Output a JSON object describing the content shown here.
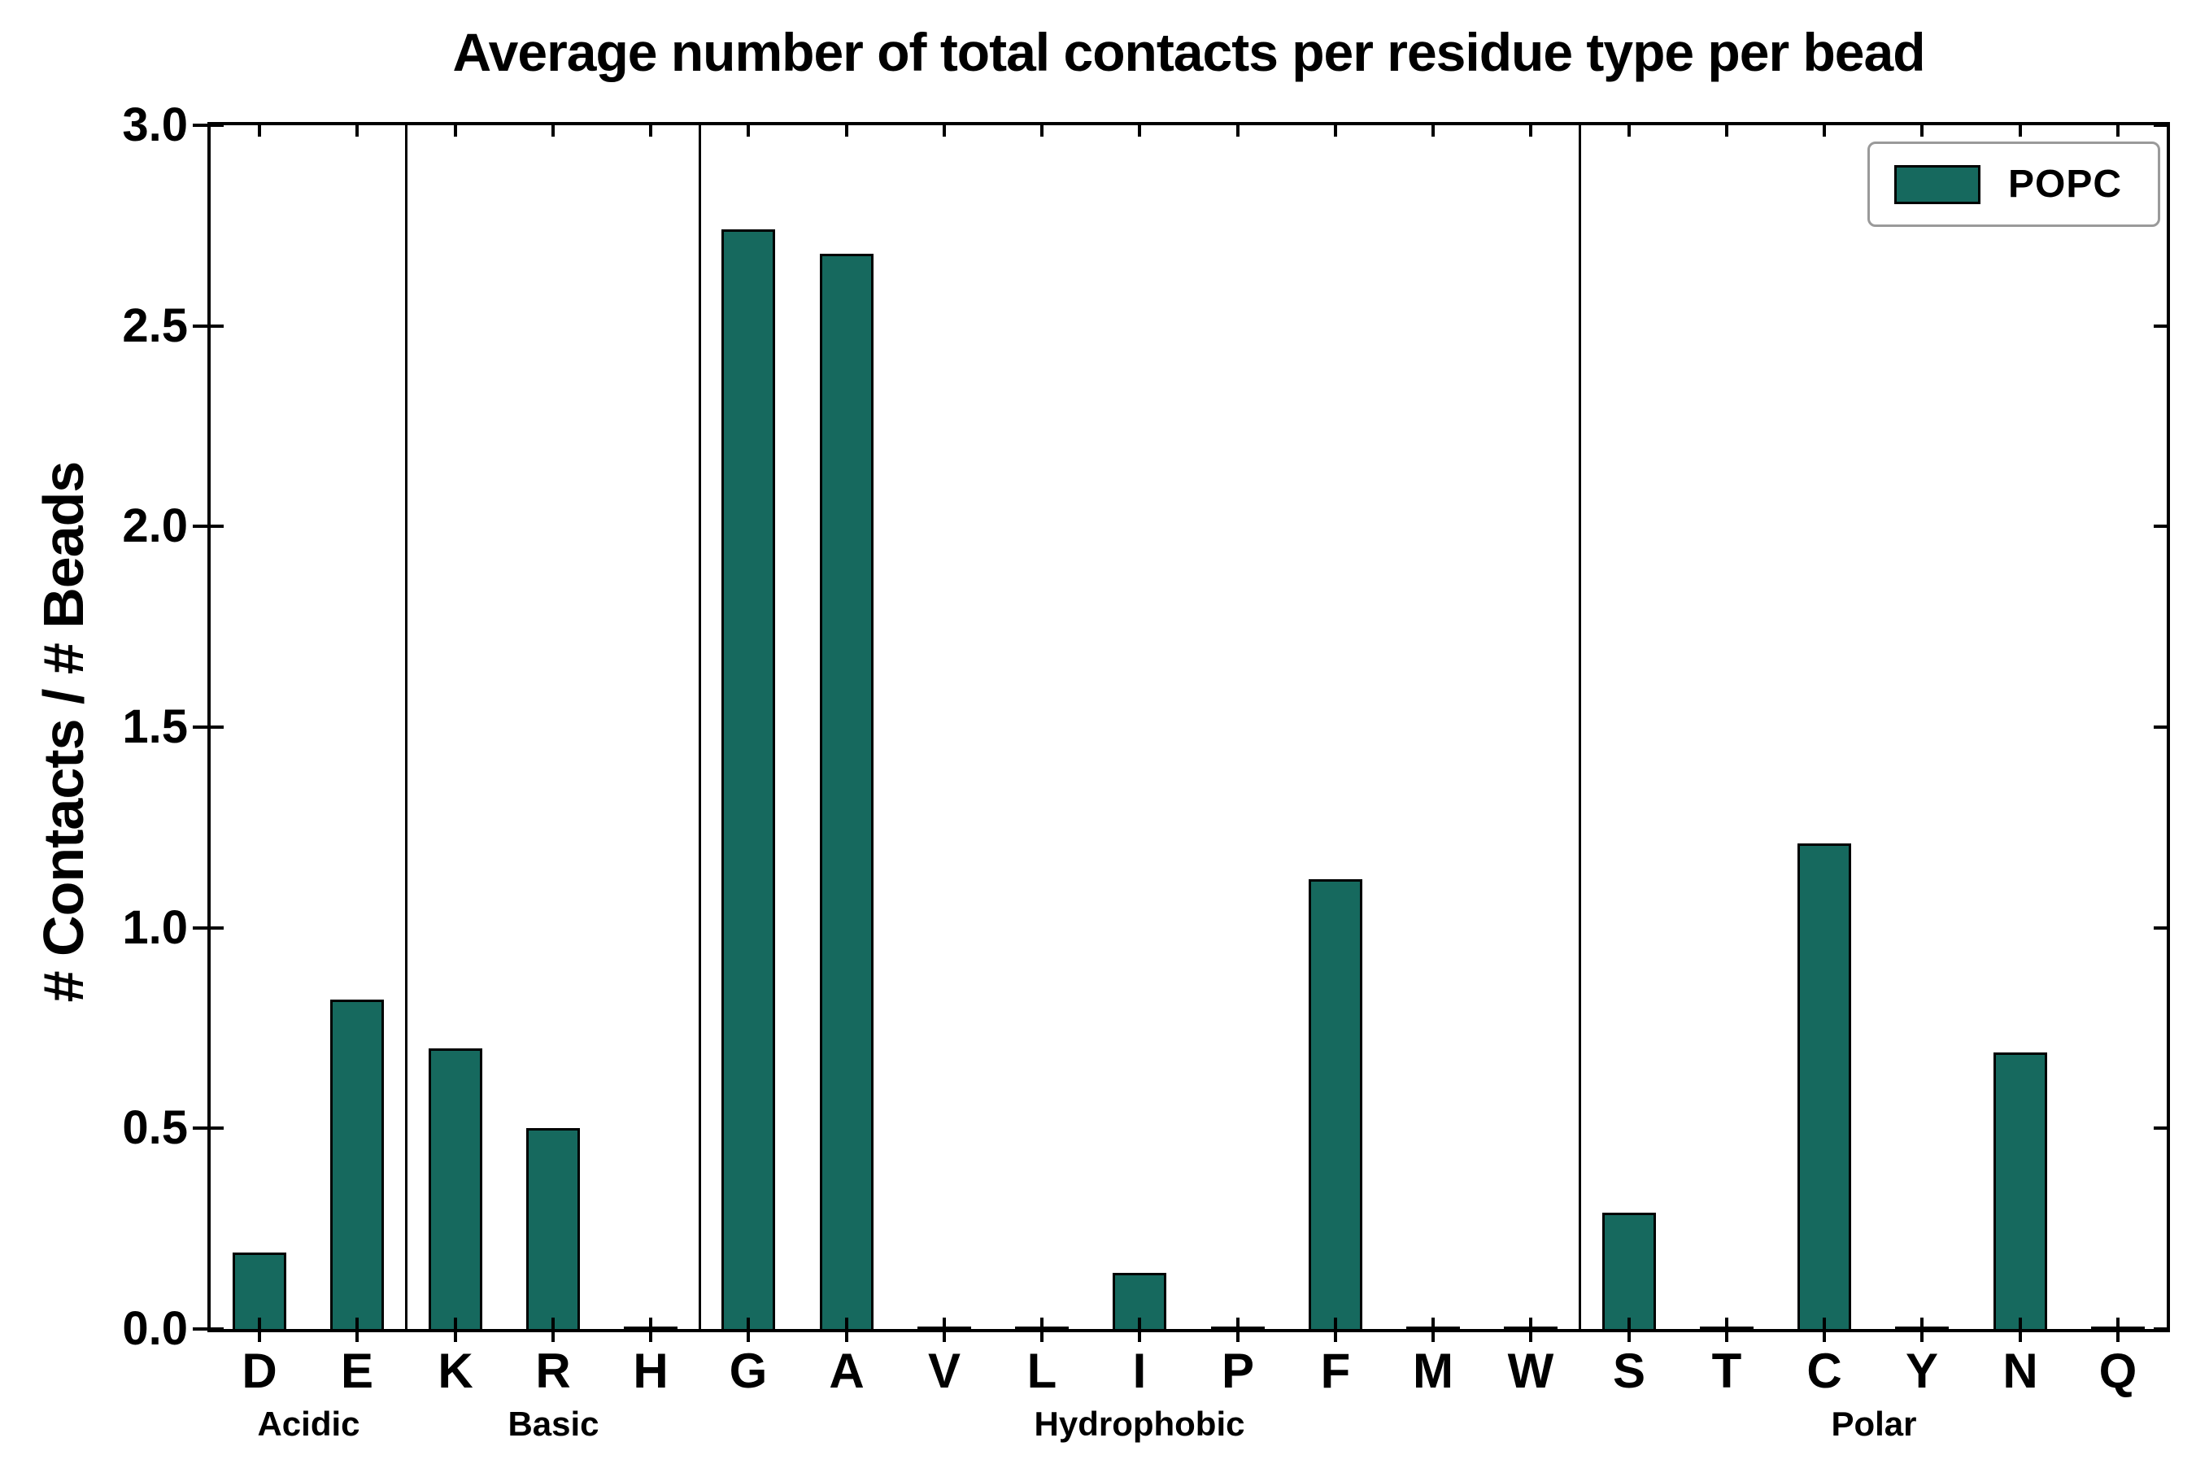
{
  "chart_data": {
    "type": "bar",
    "title": "Average number of total contacts per residue type per bead",
    "ylabel": "# Contacts / # Beads",
    "xlabel": "",
    "ylim": [
      0,
      3.0
    ],
    "ytick_values": [
      0.0,
      0.5,
      1.0,
      1.5,
      2.0,
      2.5,
      3.0
    ],
    "ytick_labels": [
      "0.0",
      "0.5",
      "1.0",
      "1.5",
      "2.0",
      "2.5",
      "3.0"
    ],
    "grid": false,
    "legend": {
      "position": "upper right",
      "entries": [
        {
          "label": "POPC",
          "color": "#16695e"
        }
      ]
    },
    "groups": [
      {
        "label": "Acidic",
        "categories": [
          "D",
          "E"
        ],
        "values": [
          0.19,
          0.82
        ]
      },
      {
        "label": "Basic",
        "categories": [
          "K",
          "R",
          "H"
        ],
        "values": [
          0.7,
          0.5,
          0.005
        ]
      },
      {
        "label": "Hydrophobic",
        "categories": [
          "G",
          "A",
          "V",
          "L",
          "I",
          "P",
          "F",
          "M",
          "W"
        ],
        "values": [
          2.74,
          2.68,
          0.005,
          0.005,
          0.14,
          0.005,
          1.12,
          0.005,
          0.005
        ]
      },
      {
        "label": "Polar",
        "categories": [
          "S",
          "T",
          "C",
          "Y",
          "N",
          "Q"
        ],
        "values": [
          0.29,
          0.005,
          1.21,
          0.005,
          0.69,
          0.005
        ]
      }
    ],
    "colors": {
      "bar_fill": "#16695e",
      "bar_edge": "#000000",
      "axis": "#000000",
      "background": "#ffffff"
    }
  }
}
